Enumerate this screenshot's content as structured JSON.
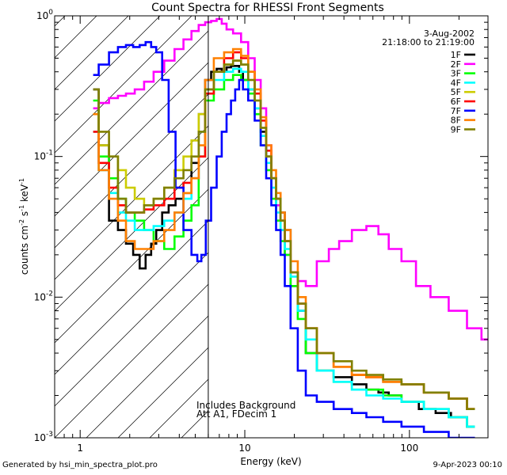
{
  "chart_data": {
    "type": "line",
    "title": "Count Spectra for RHESSI Front Segments",
    "xlabel": "Energy (keV)",
    "ylabel": "counts cm^-2 s^-1 keV^-1",
    "ylabel_parts": [
      "counts cm",
      "-2",
      " s",
      "-1",
      " keV",
      "-1"
    ],
    "xscale": "log",
    "yscale": "log",
    "xlim": [
      0.7,
      300
    ],
    "ylim": [
      0.001,
      1.0
    ],
    "x_ticks": [
      {
        "value": 1,
        "label": "1"
      },
      {
        "value": 10,
        "label": "10"
      },
      {
        "value": 100,
        "label": "100"
      }
    ],
    "y_ticks": [
      {
        "value": 1,
        "label": "10",
        "exp": "0"
      },
      {
        "value": 0.1,
        "label": "10",
        "exp": "-1"
      },
      {
        "value": 0.01,
        "label": "10",
        "exp": "-2"
      },
      {
        "value": 0.001,
        "label": "10",
        "exp": "-3"
      }
    ],
    "date": "3-Aug-2002",
    "time_range": "21:18:00 to 21:19:00",
    "vertical_line_x": 6.0,
    "hatched_region": "left of vertical line (energies below 6 keV)",
    "annotations": [
      "Includes Background",
      "Att A1, FDecim 1"
    ],
    "legend_position": "top-right",
    "series": [
      {
        "name": "1F",
        "color": "#000000",
        "x": [
          1.2,
          1.4,
          1.6,
          1.8,
          2.0,
          2.2,
          2.4,
          2.6,
          2.8,
          3.0,
          3.3,
          3.6,
          4.0,
          4.5,
          5.0,
          5.5,
          6.0,
          6.5,
          7.0,
          7.5,
          8.0,
          8.5,
          9.0,
          9.5,
          10,
          11,
          12,
          13,
          14,
          15,
          16,
          17,
          18,
          20,
          22,
          25,
          30,
          40,
          50,
          60,
          70,
          80,
          100,
          130,
          160,
          200,
          250
        ],
        "y": [
          0.3,
          0.12,
          0.035,
          0.03,
          0.024,
          0.02,
          0.016,
          0.02,
          0.024,
          0.03,
          0.04,
          0.045,
          0.05,
          0.055,
          0.09,
          0.2,
          0.35,
          0.4,
          0.42,
          0.4,
          0.43,
          0.44,
          0.44,
          0.4,
          0.35,
          0.3,
          0.22,
          0.15,
          0.1,
          0.07,
          0.05,
          0.04,
          0.03,
          0.012,
          0.008,
          0.004,
          0.003,
          0.0027,
          0.0024,
          0.0022,
          0.0021,
          0.002,
          0.0018,
          0.0016,
          0.0015,
          0.0014,
          0.0012
        ]
      },
      {
        "name": "2F",
        "color": "#ff00ff",
        "x": [
          1.2,
          1.4,
          1.6,
          1.8,
          2.0,
          2.3,
          2.6,
          3.0,
          3.5,
          4.0,
          4.5,
          5.0,
          5.5,
          6.0,
          6.5,
          7.0,
          7.5,
          8.0,
          9.0,
          10,
          11,
          12,
          13,
          14,
          15,
          16,
          17,
          18,
          20,
          22,
          25,
          30,
          35,
          40,
          50,
          60,
          70,
          80,
          100,
          120,
          150,
          200,
          250,
          300
        ],
        "y": [
          0.22,
          0.24,
          0.26,
          0.27,
          0.28,
          0.3,
          0.34,
          0.4,
          0.48,
          0.58,
          0.68,
          0.78,
          0.86,
          0.9,
          0.92,
          0.95,
          0.88,
          0.8,
          0.75,
          0.65,
          0.5,
          0.35,
          0.22,
          0.12,
          0.07,
          0.045,
          0.035,
          0.02,
          0.015,
          0.013,
          0.012,
          0.018,
          0.022,
          0.025,
          0.03,
          0.032,
          0.028,
          0.022,
          0.018,
          0.012,
          0.01,
          0.008,
          0.006,
          0.005
        ]
      },
      {
        "name": "3F",
        "color": "#00ff00",
        "x": [
          1.2,
          1.4,
          1.6,
          1.8,
          2.0,
          2.3,
          2.6,
          3.0,
          3.5,
          4.0,
          4.5,
          5.0,
          5.5,
          6.0,
          7.0,
          8.0,
          9.0,
          10,
          11,
          12,
          13,
          14,
          15,
          16,
          17,
          18,
          20,
          22,
          25,
          30,
          40,
          50,
          60,
          80,
          100,
          150,
          200,
          250
        ],
        "y": [
          0.25,
          0.1,
          0.07,
          0.05,
          0.04,
          0.035,
          0.03,
          0.025,
          0.022,
          0.027,
          0.035,
          0.045,
          0.1,
          0.25,
          0.3,
          0.35,
          0.38,
          0.35,
          0.28,
          0.2,
          0.12,
          0.08,
          0.05,
          0.035,
          0.025,
          0.02,
          0.012,
          0.007,
          0.004,
          0.003,
          0.0025,
          0.0022,
          0.0022,
          0.002,
          0.0018,
          0.0016,
          0.0014,
          0.0012
        ]
      },
      {
        "name": "4F",
        "color": "#00ffff",
        "x": [
          1.2,
          1.4,
          1.6,
          1.8,
          2.0,
          2.3,
          2.6,
          3.0,
          3.5,
          4.0,
          4.5,
          5.0,
          5.5,
          6.0,
          7.0,
          8.0,
          9.0,
          10,
          11,
          12,
          13,
          14,
          15,
          16,
          17,
          18,
          20,
          22,
          25,
          30,
          40,
          50,
          60,
          80,
          100,
          150,
          200,
          250
        ],
        "y": [
          0.15,
          0.08,
          0.055,
          0.04,
          0.035,
          0.03,
          0.03,
          0.032,
          0.035,
          0.04,
          0.05,
          0.07,
          0.15,
          0.3,
          0.35,
          0.4,
          0.42,
          0.4,
          0.3,
          0.22,
          0.14,
          0.09,
          0.06,
          0.04,
          0.03,
          0.022,
          0.014,
          0.008,
          0.005,
          0.003,
          0.0025,
          0.0022,
          0.002,
          0.0019,
          0.0018,
          0.0016,
          0.0014,
          0.0012
        ]
      },
      {
        "name": "5F",
        "color": "#cccc00",
        "x": [
          1.2,
          1.4,
          1.6,
          1.8,
          2.0,
          2.3,
          2.6,
          3.0,
          3.5,
          4.0,
          4.5,
          5.0,
          5.5,
          6.0,
          7.0,
          8.0,
          9.0,
          10,
          11,
          12,
          13,
          14,
          15,
          16,
          17,
          18,
          20,
          22,
          25,
          30,
          40,
          50,
          60,
          80,
          100,
          150,
          200,
          250
        ],
        "y": [
          0.2,
          0.12,
          0.1,
          0.08,
          0.06,
          0.05,
          0.045,
          0.05,
          0.06,
          0.08,
          0.1,
          0.13,
          0.2,
          0.3,
          0.4,
          0.45,
          0.48,
          0.45,
          0.35,
          0.25,
          0.16,
          0.1,
          0.07,
          0.05,
          0.035,
          0.025,
          0.015,
          0.009,
          0.006,
          0.004,
          0.0032,
          0.0028,
          0.0027,
          0.0025,
          0.0024,
          0.0021,
          0.0019,
          0.0016
        ]
      },
      {
        "name": "6F",
        "color": "#ff0000",
        "x": [
          1.2,
          1.4,
          1.6,
          1.8,
          2.0,
          2.3,
          2.6,
          3.0,
          3.5,
          4.0,
          4.5,
          5.0,
          5.5,
          6.0,
          7.0,
          8.0,
          9.0,
          10,
          11,
          12,
          13,
          14,
          15,
          16,
          17,
          18,
          20,
          22,
          25,
          30,
          40,
          50,
          60,
          80,
          100,
          150,
          200,
          250
        ],
        "y": [
          0.15,
          0.09,
          0.06,
          0.045,
          0.04,
          0.04,
          0.042,
          0.045,
          0.05,
          0.06,
          0.065,
          0.07,
          0.1,
          0.28,
          0.4,
          0.5,
          0.55,
          0.5,
          0.4,
          0.28,
          0.18,
          0.11,
          0.07,
          0.05,
          0.035,
          0.025,
          0.015,
          0.009,
          0.006,
          0.004,
          0.0032,
          0.0028,
          0.0027,
          0.0025,
          0.0024,
          0.0021,
          0.0019,
          0.0016
        ]
      },
      {
        "name": "7F",
        "color": "#0000ff",
        "x": [
          1.2,
          1.4,
          1.6,
          1.8,
          2.0,
          2.2,
          2.4,
          2.6,
          2.8,
          3.0,
          3.3,
          3.6,
          4.0,
          4.5,
          5.0,
          5.3,
          5.6,
          6.0,
          6.5,
          7.0,
          7.5,
          8.0,
          8.5,
          9.0,
          9.5,
          10,
          11,
          12,
          13,
          14,
          15,
          16,
          17,
          18,
          20,
          22,
          25,
          30,
          40,
          50,
          60,
          80,
          100,
          150,
          200,
          250
        ],
        "y": [
          0.38,
          0.45,
          0.55,
          0.6,
          0.62,
          0.6,
          0.62,
          0.65,
          0.6,
          0.55,
          0.35,
          0.15,
          0.06,
          0.03,
          0.02,
          0.018,
          0.02,
          0.035,
          0.06,
          0.1,
          0.15,
          0.2,
          0.25,
          0.3,
          0.35,
          0.3,
          0.25,
          0.18,
          0.12,
          0.07,
          0.045,
          0.03,
          0.02,
          0.012,
          0.006,
          0.003,
          0.002,
          0.0018,
          0.0016,
          0.0015,
          0.0014,
          0.0013,
          0.0012,
          0.0011,
          0.001,
          0.001
        ]
      },
      {
        "name": "8F",
        "color": "#ff8000",
        "x": [
          1.2,
          1.4,
          1.6,
          1.8,
          2.0,
          2.3,
          2.6,
          3.0,
          3.5,
          4.0,
          4.5,
          5.0,
          5.5,
          6.0,
          7.0,
          8.0,
          9.0,
          10,
          11,
          12,
          13,
          14,
          15,
          16,
          17,
          18,
          20,
          22,
          25,
          30,
          40,
          50,
          60,
          80,
          100,
          150,
          200,
          250
        ],
        "y": [
          0.2,
          0.08,
          0.05,
          0.035,
          0.025,
          0.022,
          0.022,
          0.025,
          0.03,
          0.04,
          0.055,
          0.07,
          0.12,
          0.35,
          0.5,
          0.55,
          0.58,
          0.52,
          0.4,
          0.3,
          0.19,
          0.12,
          0.08,
          0.055,
          0.04,
          0.03,
          0.018,
          0.01,
          0.006,
          0.004,
          0.0032,
          0.0028,
          0.0027,
          0.0025,
          0.0024,
          0.0021,
          0.0019,
          0.0016
        ]
      },
      {
        "name": "9F",
        "color": "#808000",
        "x": [
          1.2,
          1.4,
          1.6,
          1.8,
          2.0,
          2.3,
          2.6,
          3.0,
          3.5,
          4.0,
          4.5,
          5.0,
          5.5,
          6.0,
          7.0,
          8.0,
          9.0,
          10,
          11,
          12,
          13,
          14,
          15,
          16,
          17,
          18,
          20,
          22,
          25,
          30,
          40,
          50,
          60,
          80,
          100,
          150,
          200,
          250
        ],
        "y": [
          0.3,
          0.15,
          0.1,
          0.05,
          0.04,
          0.04,
          0.045,
          0.05,
          0.06,
          0.07,
          0.08,
          0.1,
          0.15,
          0.3,
          0.4,
          0.45,
          0.48,
          0.45,
          0.35,
          0.25,
          0.16,
          0.1,
          0.07,
          0.05,
          0.035,
          0.025,
          0.015,
          0.009,
          0.006,
          0.004,
          0.0035,
          0.003,
          0.0028,
          0.0026,
          0.0024,
          0.0021,
          0.0019,
          0.0016
        ]
      }
    ]
  },
  "footer": {
    "generated_by": "Generated by hsi_min_spectra_plot.pro",
    "timestamp": "9-Apr-2023 00:10"
  }
}
